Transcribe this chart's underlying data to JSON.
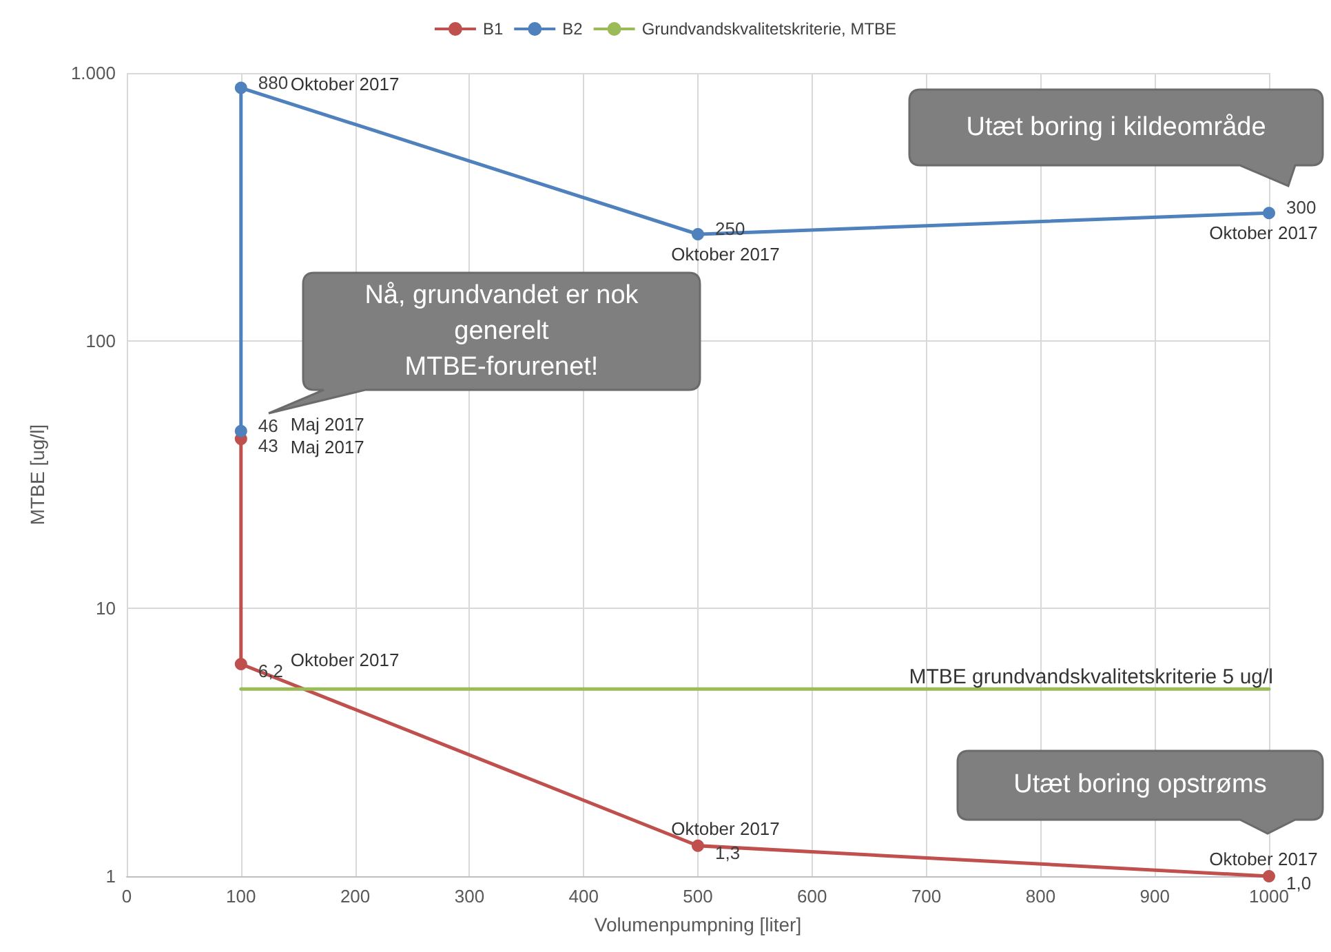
{
  "chart_data": {
    "type": "line",
    "xlabel": "Volumenpumpning [liter]",
    "ylabel": "MTBE [ug/l]",
    "series": [
      {
        "name": "B1",
        "color": "#c0504d",
        "x": [
          100,
          100,
          500,
          1000
        ],
        "values": [
          43,
          6.2,
          1.3,
          1.0
        ],
        "value_labels": [
          "43",
          "6,2",
          "1,3",
          "1,0"
        ]
      },
      {
        "name": "B2",
        "color": "#4f81bd",
        "x": [
          100,
          100,
          500,
          1000
        ],
        "values": [
          46,
          880,
          250,
          300
        ],
        "value_labels": [
          "46",
          "880",
          "250",
          "300"
        ]
      },
      {
        "name": "Grundvandskvalitetskriterie, MTBE",
        "color": "#9bbb59",
        "marker": "none",
        "x": [
          100,
          1000
        ],
        "values": [
          5,
          5
        ]
      }
    ],
    "xlim": [
      0,
      1000
    ],
    "xticks": [
      0,
      100,
      200,
      300,
      400,
      500,
      600,
      700,
      800,
      900,
      1000
    ],
    "ylim": [
      1,
      1000
    ],
    "yticks": [
      1,
      10,
      100,
      {
        "value": 1000,
        "label": "1.000"
      }
    ],
    "log": "y",
    "grid": true,
    "legend": "top",
    "marker": "circle",
    "line_style": "solid",
    "annotations": [
      {
        "text": "Oktober 2017",
        "x": 100,
        "y": 880
      },
      {
        "text": "Oktober 2017",
        "x": 500,
        "y": 250
      },
      {
        "text": "Oktober 2017",
        "x": 1000,
        "y": 300
      },
      {
        "text": "Maj 2017",
        "x": 100,
        "y": 46
      },
      {
        "text": "Maj 2017",
        "x": 100,
        "y": 43
      },
      {
        "text": "Oktober 2017",
        "x": 100,
        "y": 6.2
      },
      {
        "text": "Oktober 2017",
        "x": 500,
        "y": 1.3
      },
      {
        "text": "Oktober 2017",
        "x": 1000,
        "y": 1.0
      },
      {
        "text": "MTBE grundvandskvalitetskriterie 5 ug/l",
        "x": 1000,
        "y": 5
      },
      "Nå, grundvandet er nok generelt MTBE-forurenet!",
      "Utæt boring i kildeområde",
      "Utæt boring opstrøms"
    ]
  }
}
